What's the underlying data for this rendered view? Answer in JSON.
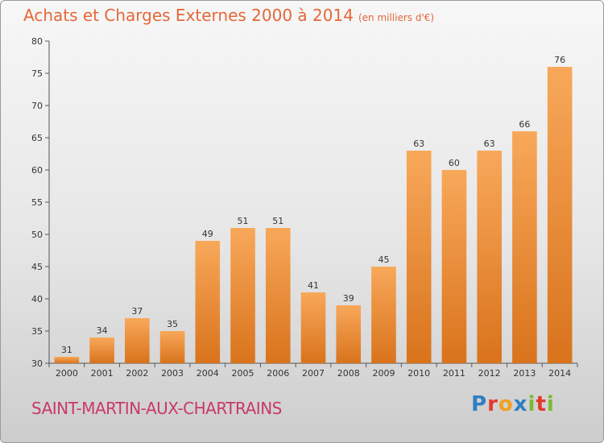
{
  "title": "Achats et Charges Externes 2000 à 2014",
  "unit": "(en milliers d'€)",
  "city": "SAINT-MARTIN-AUX-CHARTRAINS",
  "logo": {
    "text": "Proxiti",
    "colors": [
      "#2f7fc1",
      "#e23a2e",
      "#f0a020",
      "#2f7fc1",
      "#7bb935",
      "#e23a2e",
      "#7bb935"
    ]
  },
  "colors": {
    "title": "#e3683a",
    "city": "#c9386b",
    "bar_light": "#f8a85a",
    "bar_dark": "#d9731c"
  },
  "chart_data": {
    "type": "bar",
    "title": "Achats et Charges Externes 2000 à 2014",
    "subtitle": "(en milliers d'€)",
    "xlabel": "",
    "ylabel": "",
    "categories": [
      "2000",
      "2001",
      "2002",
      "2003",
      "2004",
      "2005",
      "2006",
      "2007",
      "2008",
      "2009",
      "2010",
      "2011",
      "2012",
      "2013",
      "2014"
    ],
    "values": [
      31,
      34,
      37,
      35,
      49,
      51,
      51,
      41,
      39,
      45,
      63,
      60,
      63,
      66,
      76
    ],
    "ylim": [
      30,
      80
    ],
    "yticks": [
      30,
      35,
      40,
      45,
      50,
      55,
      60,
      65,
      70,
      75,
      80
    ],
    "grid": false,
    "legend": "none"
  }
}
